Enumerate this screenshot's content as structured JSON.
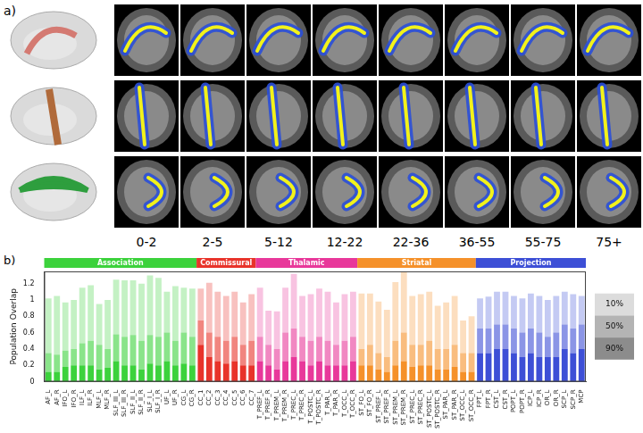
{
  "panel_a": {
    "label": "a)",
    "age_groups": [
      "0-2",
      "2-5",
      "5-12",
      "12-22",
      "22-36",
      "36-55",
      "55-75",
      "75+"
    ]
  },
  "chart_data": {
    "type": "bar",
    "panel_label": "b)",
    "ylabel": "Population Overlap",
    "categories": [
      "AF_L",
      "AF_R",
      "IFO_L",
      "IFO_R",
      "ILF_L",
      "ILF_R",
      "MLF_L",
      "MLF_R",
      "SLF_III_L",
      "SLF_III_R",
      "SLF_II_L",
      "SLF_II_R",
      "SLF_I_L",
      "SLF_I_R",
      "UF_L",
      "UF_R",
      "CG_L",
      "CG_R",
      "CC_1",
      "CC_2",
      "CC_3",
      "CC_4",
      "CC_5",
      "CC_6",
      "CC_7",
      "T_PREF_L",
      "T_PREF_R",
      "T_PREM_L",
      "T_PREM_R",
      "T_PREC_L",
      "T_PREC_R",
      "T_POSTC_L",
      "T_POSTC_R",
      "T_PAR_L",
      "T_PAR_R",
      "T_OCC_L",
      "T_OCC_R",
      "ST_FO_L",
      "ST_FO_R",
      "ST_PREF_L",
      "ST_PREF_R",
      "ST_PREM_L",
      "ST_PREM_R",
      "ST_PREC_L",
      "ST_PREC_R",
      "ST_POSTC_L",
      "ST_POSTC_R",
      "ST_PAR_L",
      "ST_PAR_R",
      "ST_OCC_L",
      "ST_OCC_R",
      "FPT_L",
      "FPT_R",
      "CST_L",
      "CST_R",
      "POPT_L",
      "POPT_R",
      "ICP_L",
      "ICP_R",
      "OR_L",
      "OR_R",
      "SCP_L",
      "SCP_R",
      "MCP"
    ],
    "groups": [
      {
        "name": "Association",
        "color": "#3cd23c",
        "first": "AF_L",
        "last": "CG_R"
      },
      {
        "name": "Commissural",
        "color": "#e8332a",
        "first": "CC_1",
        "last": "CC_7"
      },
      {
        "name": "Thalamic",
        "color": "#e8389a",
        "first": "T_PREF_L",
        "last": "T_OCC_R"
      },
      {
        "name": "Striatal",
        "color": "#f5912a",
        "first": "ST_FO_L",
        "last": "ST_OCC_R"
      },
      {
        "name": "Projection",
        "color": "#3d4fd6",
        "first": "FPT_L",
        "last": "MCP"
      }
    ],
    "series": [
      {
        "name": "90%",
        "color": "#8c8c8c",
        "values": [
          0.12,
          0.12,
          0.18,
          0.2,
          0.2,
          0.2,
          0.15,
          0.17,
          0.25,
          0.2,
          0.2,
          0.15,
          0.22,
          0.2,
          0.25,
          0.2,
          0.22,
          0.2,
          0.45,
          0.3,
          0.25,
          0.22,
          0.25,
          0.2,
          0.2,
          0.25,
          0.2,
          0.15,
          0.25,
          0.3,
          0.25,
          0.2,
          0.25,
          0.2,
          0.2,
          0.2,
          0.25,
          0.2,
          0.2,
          0.15,
          0.12,
          0.2,
          0.25,
          0.18,
          0.2,
          0.2,
          0.15,
          0.15,
          0.18,
          0.12,
          0.12,
          0.35,
          0.35,
          0.4,
          0.4,
          0.35,
          0.3,
          0.35,
          0.3,
          0.3,
          0.3,
          0.4,
          0.35,
          0.4
        ]
      },
      {
        "name": "50%",
        "color": "#b4b4b4",
        "values": [
          0.23,
          0.21,
          0.2,
          0.2,
          0.27,
          0.3,
          0.3,
          0.23,
          0.33,
          0.35,
          0.37,
          0.35,
          0.35,
          0.35,
          0.35,
          0.3,
          0.38,
          0.35,
          0.3,
          0.3,
          0.3,
          0.28,
          0.3,
          0.25,
          0.3,
          0.3,
          0.25,
          0.25,
          0.35,
          0.35,
          0.3,
          0.3,
          0.3,
          0.3,
          0.25,
          0.3,
          0.3,
          0.2,
          0.25,
          0.2,
          0.18,
          0.3,
          0.35,
          0.27,
          0.25,
          0.3,
          0.25,
          0.25,
          0.27,
          0.23,
          0.23,
          0.3,
          0.3,
          0.3,
          0.3,
          0.3,
          0.3,
          0.3,
          0.3,
          0.25,
          0.3,
          0.3,
          0.3,
          0.3
        ]
      },
      {
        "name": "10%",
        "color": "#dcdcdc",
        "values": [
          0.67,
          0.72,
          0.59,
          0.6,
          0.68,
          0.68,
          0.5,
          0.6,
          0.67,
          0.69,
          0.67,
          0.7,
          0.73,
          0.72,
          0.5,
          0.67,
          0.55,
          0.59,
          0.39,
          0.61,
          0.55,
          0.55,
          0.55,
          0.52,
          0.57,
          0.6,
          0.42,
          0.46,
          0.55,
          0.67,
          0.5,
          0.57,
          0.59,
          0.6,
          0.52,
          0.57,
          0.55,
          0.68,
          0.63,
          0.63,
          0.58,
          0.72,
          0.74,
          0.6,
          0.62,
          0.6,
          0.53,
          0.57,
          0.6,
          0.4,
          0.45,
          0.37,
          0.39,
          0.4,
          0.4,
          0.4,
          0.42,
          0.43,
          0.45,
          0.45,
          0.45,
          0.4,
          0.42,
          0.35
        ]
      }
    ],
    "ylim": [
      0,
      1.35
    ],
    "yticks": [
      0,
      0.2,
      0.4,
      0.6,
      0.8,
      1,
      1.2
    ],
    "stacked": true,
    "grid": false,
    "legend": "right"
  }
}
